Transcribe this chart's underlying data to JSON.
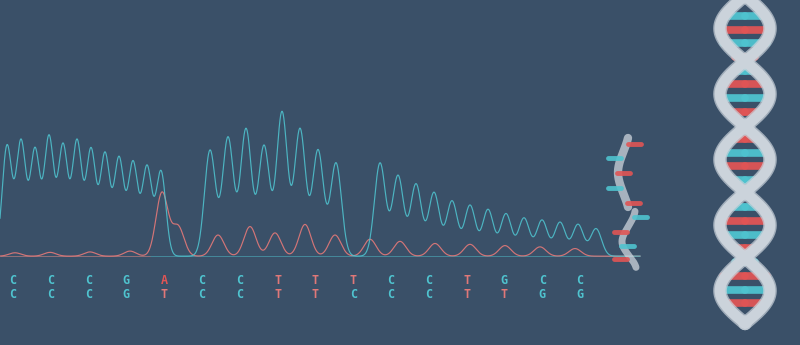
{
  "background_color": "#3a5068",
  "cyan_color": "#4fc3cf",
  "red_color": "#e05555",
  "pink_color": "#e07878",
  "white_strand": "#ccd6e0",
  "figsize": [
    8.0,
    3.45
  ],
  "dpi": 100,
  "seq1": [
    "C",
    "C",
    "C",
    "G",
    "A",
    "C",
    "C",
    "T",
    "T",
    "T",
    "C",
    "C",
    "T",
    "G",
    "C",
    "C"
  ],
  "seq1_colors": [
    "#4fc3cf",
    "#4fc3cf",
    "#4fc3cf",
    "#4fc3cf",
    "#e05555",
    "#4fc3cf",
    "#4fc3cf",
    "#e07878",
    "#e07878",
    "#e07878",
    "#4fc3cf",
    "#4fc3cf",
    "#e07878",
    "#4fc3cf",
    "#4fc3cf",
    "#4fc3cf"
  ],
  "seq2": [
    "C",
    "C",
    "C",
    "G",
    "T",
    "C",
    "C",
    "T",
    "T",
    "C",
    "C",
    "C",
    "T",
    "T",
    "G",
    "G"
  ],
  "seq2_colors": [
    "#4fc3cf",
    "#4fc3cf",
    "#4fc3cf",
    "#4fc3cf",
    "#e07878",
    "#4fc3cf",
    "#4fc3cf",
    "#e07878",
    "#e07878",
    "#4fc3cf",
    "#4fc3cf",
    "#4fc3cf",
    "#e07878",
    "#e07878",
    "#4fc3cf",
    "#4fc3cf"
  ]
}
